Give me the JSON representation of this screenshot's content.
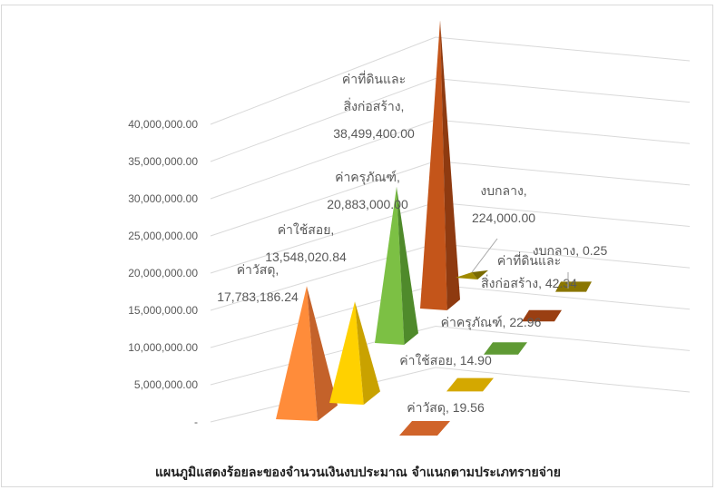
{
  "chart_data": {
    "type": "3d-pyramid-bar",
    "title": "แผนภูมิแสดงร้อยละของจำนวนเงินงบประมาณ จำแนกตามประเภทรายจ่าย",
    "y_tick_labels": [
      "40,000,000.00",
      "35,000,000.00",
      "30,000,000.00",
      "25,000,000.00",
      "20,000,000.00",
      "15,000,000.00",
      "10,000,000.00",
      "5,000,000.00",
      "-"
    ],
    "ylim": [
      0,
      40000000
    ],
    "amount_series": [
      {
        "category": "ค่าวัสดุ",
        "amount": 17783186.24,
        "label_lines": [
          "ค่าวัสดุ,",
          "17,783,186.24"
        ],
        "color": "#ff8c3a",
        "shade": "#c4622a"
      },
      {
        "category": "ค่าใช้สอย",
        "amount": 13548020.84,
        "label_lines": [
          "ค่าใช้สอย,",
          "13,548,020.84"
        ],
        "color": "#ffd100",
        "shade": "#c9a200"
      },
      {
        "category": "ค่าครุภัณฑ์",
        "amount": 20883000.0,
        "label_lines": [
          "ค่าครุภัณฑ์,",
          "20,883,000.00"
        ],
        "color": "#7cc044",
        "shade": "#4f8a2b"
      },
      {
        "category": "ค่าที่ดินและสิ่งก่อสร้าง",
        "amount": 38499400.0,
        "label_lines": [
          "ค่าที่ดินและ",
          "สิ่งก่อสร้าง,",
          "38,499,400.00"
        ],
        "color": "#c4551a",
        "shade": "#8e3a10"
      },
      {
        "category": "งบกลาง",
        "amount": 224000.0,
        "label_lines": [
          "งบกลาง,",
          "224,000.00"
        ],
        "color": "#a08a00",
        "shade": "#7a6a00"
      }
    ],
    "percent_series": [
      {
        "category": "ค่าวัสดุ",
        "percent": 19.56,
        "label_lines": [
          "ค่าวัสดุ,  19.56"
        ],
        "color": "#d0642a"
      },
      {
        "category": "ค่าใช้สอย",
        "percent": 14.9,
        "label_lines": [
          "ค่าใช้สอย,  14.90"
        ],
        "color": "#d4a800"
      },
      {
        "category": "ค่าครุภัณฑ์",
        "percent": 22.96,
        "label_lines": [
          "ค่าครุภัณฑ์,  22.96"
        ],
        "color": "#5f9a34"
      },
      {
        "category": "ค่าที่ดินและสิ่งก่อสร้าง",
        "percent": 42.34,
        "label_lines": [
          "ค่าที่ดินและ",
          "สิ่งก่อสร้าง,  42.34"
        ],
        "color": "#9a3f12"
      },
      {
        "category": "งบกลาง",
        "percent": 0.25,
        "label_lines": [
          "งบกลาง,  0.25"
        ],
        "color": "#8a7600"
      }
    ]
  }
}
